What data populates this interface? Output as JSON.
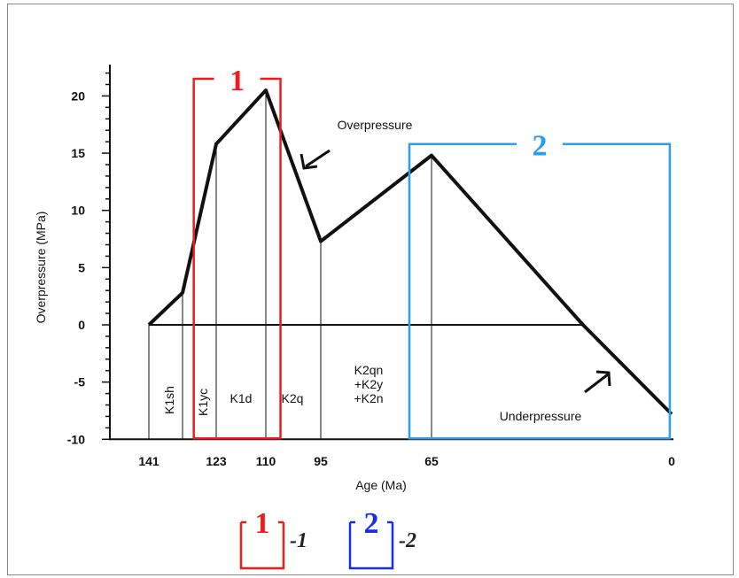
{
  "chart_data": {
    "type": "line",
    "title": "",
    "xlabel": "Age (Ma)",
    "ylabel": "Overpressure (MPa)",
    "x_reversed": true,
    "xlim": [
      148,
      0
    ],
    "ylim": [
      -10,
      22
    ],
    "x_ticks": [
      141,
      123,
      110,
      95,
      65,
      0
    ],
    "y_ticks": [
      20,
      15,
      10,
      5,
      0,
      -5,
      -10
    ],
    "series": [
      {
        "name": "",
        "x": [
          141,
          132,
          123,
          110,
          95,
          65,
          24,
          0
        ],
        "y": [
          0,
          2.8,
          15.8,
          20.5,
          7.3,
          14.8,
          0,
          -7.8
        ]
      }
    ],
    "reference_line_y": 0,
    "vertical_lines_x": [
      141,
      132,
      123,
      110,
      95,
      65
    ],
    "stratigraphic_units": [
      "K1sh",
      "K1yc",
      "K1d",
      "K2q",
      "K2qn\n+K2y\n+K2n"
    ],
    "annotations": {
      "overpressure": "Overpressure",
      "underpressure": "Underpressure"
    },
    "highlight_boxes": [
      {
        "label": "1",
        "color": "#ee1c1c",
        "x_range": [
          129,
          106
        ],
        "y_range": [
          -10,
          21.5
        ]
      },
      {
        "label": "2",
        "color": "#2a9df4",
        "x_range": [
          71,
          0.5
        ],
        "y_range": [
          -10,
          15.8
        ]
      }
    ],
    "legend": [
      {
        "label": "1",
        "suffix": "-1",
        "color": "#ee1c1c"
      },
      {
        "label": "2",
        "suffix": "-2",
        "color": "#1a2ee6"
      }
    ]
  }
}
